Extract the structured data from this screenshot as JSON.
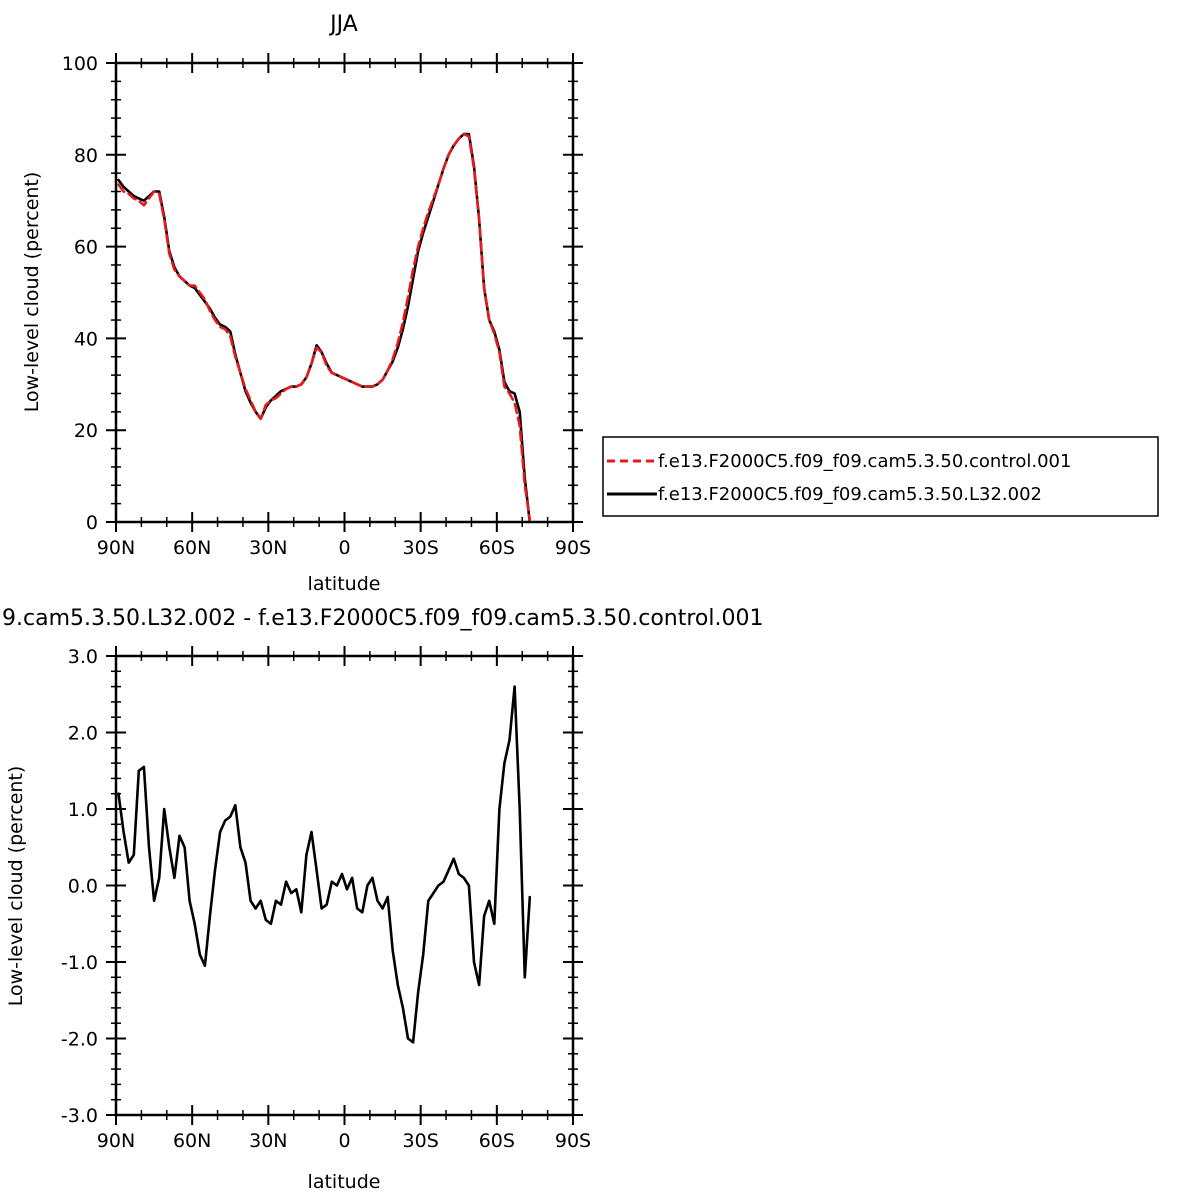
{
  "chart_data": [
    {
      "type": "line",
      "title": "JJA",
      "xlabel": "latitude",
      "ylabel": "Low-level cloud (percent)",
      "x_tick_labels": [
        "90N",
        "60N",
        "30N",
        "0",
        "30S",
        "60S",
        "90S"
      ],
      "xlim": [
        90,
        -90
      ],
      "ylim": [
        0,
        100
      ],
      "y_tick_labels": [
        "0",
        "20",
        "40",
        "60",
        "80",
        "100"
      ],
      "legend_position": "right",
      "x": [
        89,
        87,
        85,
        83,
        81,
        79,
        77,
        75,
        73,
        71,
        69,
        67,
        65,
        63,
        61,
        59,
        57,
        55,
        53,
        51,
        49,
        47,
        45,
        43,
        41,
        39,
        37,
        35,
        33,
        31,
        29,
        27,
        25,
        23,
        21,
        19,
        17,
        15,
        13,
        11,
        9,
        7,
        5,
        3,
        1,
        -1,
        -3,
        -5,
        -7,
        -9,
        -11,
        -13,
        -15,
        -17,
        -19,
        -21,
        -23,
        -25,
        -27,
        -29,
        -31,
        -33,
        -35,
        -37,
        -39,
        -41,
        -43,
        -45,
        -47,
        -49,
        -51,
        -53,
        -55,
        -57,
        -59,
        -61,
        -63,
        -65,
        -67,
        -69,
        -71,
        -73,
        -75,
        -77,
        -79,
        -81,
        -83,
        -85,
        -87,
        -89
      ],
      "series": [
        {
          "name": "f.e13.F2000C5.f09_f09.cam5.3.50.control.001",
          "color": "#e41a1c",
          "dash": true,
          "values": [
            73.5,
            72.0,
            71.5,
            70.5,
            70.0,
            69.0,
            70.5,
            72.0,
            71.5,
            66.0,
            58.5,
            55.0,
            53.5,
            52.5,
            51.5,
            51.5,
            50.0,
            48.5,
            46.0,
            44.0,
            42.5,
            42.0,
            40.5,
            36.0,
            32.5,
            29.0,
            26.5,
            24.0,
            22.5,
            25.5,
            26.5,
            27.0,
            28.0,
            29.0,
            29.5,
            29.5,
            30.0,
            31.5,
            34.5,
            38.0,
            37.0,
            34.0,
            32.5,
            32.0,
            31.5,
            31.0,
            30.5,
            30.0,
            29.5,
            29.5,
            29.5,
            30.0,
            31.0,
            33.0,
            35.5,
            39.0,
            43.5,
            49.0,
            55.0,
            60.0,
            64.0,
            67.5,
            70.5,
            73.5,
            77.0,
            80.0,
            82.0,
            83.5,
            84.5,
            84.0,
            77.0,
            66.0,
            51.0,
            44.0,
            41.0,
            37.0,
            29.5,
            28.0,
            26.0,
            21.0,
            8.0,
            0.5,
            null,
            null,
            null,
            null,
            null,
            null,
            null,
            null
          ]
        },
        {
          "name": "f.e13.F2000C5.f09_f09.cam5.3.50.L32.002",
          "color": "#000000",
          "dash": false,
          "values": [
            74.5,
            73.0,
            72.0,
            71.0,
            70.5,
            70.0,
            71.0,
            72.0,
            72.0,
            66.5,
            59.0,
            55.5,
            53.5,
            52.5,
            51.5,
            51.0,
            49.5,
            48.0,
            46.5,
            44.5,
            43.0,
            42.5,
            41.5,
            36.5,
            32.5,
            28.5,
            26.0,
            24.0,
            22.5,
            25.0,
            26.5,
            27.5,
            28.5,
            29.0,
            29.5,
            29.5,
            30.0,
            31.5,
            34.5,
            38.5,
            37.0,
            34.5,
            32.5,
            32.0,
            31.5,
            31.0,
            30.5,
            30.0,
            29.5,
            29.5,
            29.5,
            30.0,
            31.0,
            33.0,
            35.0,
            38.0,
            42.0,
            47.0,
            53.0,
            59.0,
            63.0,
            66.5,
            70.0,
            73.5,
            77.0,
            80.0,
            82.0,
            83.5,
            84.5,
            84.5,
            77.5,
            66.0,
            51.0,
            44.0,
            41.5,
            37.5,
            30.5,
            28.5,
            28.0,
            24.0,
            9.5,
            0.0,
            null,
            null,
            null,
            null,
            null,
            null,
            null,
            null
          ]
        }
      ]
    },
    {
      "type": "line",
      "title": "9.cam5.3.50.L32.002 - f.e13.F2000C5.f09_f09.cam5.3.50.control.001",
      "xlabel": "latitude",
      "ylabel": "Low-level cloud (percent)",
      "x_tick_labels": [
        "90N",
        "60N",
        "30N",
        "0",
        "30S",
        "60S",
        "90S"
      ],
      "xlim": [
        90,
        -90
      ],
      "ylim": [
        -3,
        3
      ],
      "y_tick_labels": [
        "-3.0",
        "-2.0",
        "-1.0",
        "0.0",
        "1.0",
        "2.0",
        "3.0"
      ],
      "x": [
        89,
        87,
        85,
        83,
        81,
        79,
        77,
        75,
        73,
        71,
        69,
        67,
        65,
        63,
        61,
        59,
        57,
        55,
        53,
        51,
        49,
        47,
        45,
        43,
        41,
        39,
        37,
        35,
        33,
        31,
        29,
        27,
        25,
        23,
        21,
        19,
        17,
        15,
        13,
        11,
        9,
        7,
        5,
        3,
        1,
        -1,
        -3,
        -5,
        -7,
        -9,
        -11,
        -13,
        -15,
        -17,
        -19,
        -21,
        -23,
        -25,
        -27,
        -29,
        -31,
        -33,
        -35,
        -37,
        -39,
        -41,
        -43,
        -45,
        -47,
        -49,
        -51,
        -53,
        -55,
        -57,
        -59,
        -61,
        -63,
        -65,
        -67,
        -69,
        -71,
        -73,
        -75,
        -77,
        -79,
        -81,
        -83,
        -85,
        -87,
        -89
      ],
      "series": [
        {
          "color": "#000000",
          "dash": false,
          "values": [
            1.2,
            0.7,
            0.3,
            0.4,
            1.5,
            1.55,
            0.5,
            -0.2,
            0.1,
            1.0,
            0.5,
            0.1,
            0.65,
            0.5,
            -0.2,
            -0.5,
            -0.9,
            -1.05,
            -0.4,
            0.2,
            0.7,
            0.85,
            0.9,
            1.05,
            0.5,
            0.3,
            -0.2,
            -0.3,
            -0.2,
            -0.45,
            -0.5,
            -0.2,
            -0.25,
            0.05,
            -0.1,
            -0.05,
            -0.35,
            0.4,
            0.7,
            0.2,
            -0.3,
            -0.25,
            0.05,
            0.0,
            0.15,
            -0.05,
            0.1,
            -0.3,
            -0.35,
            0.0,
            0.1,
            -0.2,
            -0.3,
            -0.15,
            -0.85,
            -1.3,
            -1.6,
            -2.0,
            -2.05,
            -1.4,
            -0.9,
            -0.2,
            -0.1,
            0.0,
            0.05,
            0.2,
            0.35,
            0.15,
            0.1,
            0.0,
            -1.0,
            -1.3,
            -0.4,
            -0.2,
            -0.5,
            1.0,
            1.6,
            1.9,
            2.6,
            1.0,
            -1.2,
            -0.15,
            null,
            null,
            null,
            null,
            null,
            null,
            null,
            null
          ]
        }
      ]
    }
  ]
}
